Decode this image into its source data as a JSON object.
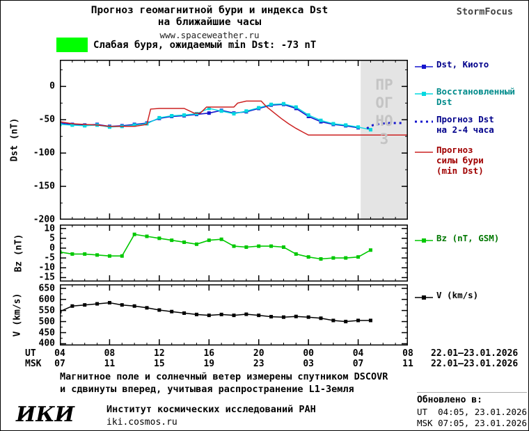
{
  "header": {
    "title_line1": "Прогноз геомагнитной бури и индекса Dst",
    "title_line2": "на ближайшие часы",
    "site": "www.spaceweather.ru",
    "brand": "StormFocus"
  },
  "alert": {
    "text": "Слабая буря, ожидаемый min Dst: -73 nT",
    "color": "#00ff00"
  },
  "legend": {
    "dst_kyoto": "Dst, Киото",
    "dst_restored": "Восстановленный\nDst",
    "dst_forecast": "Прогноз Dst\nна 2-4 часа",
    "storm_forecast": "Прогноз\nсилы бури\n(min Dst)",
    "bz": "Bz (nT, GSM)",
    "v": "V (km/s)"
  },
  "xaxis": {
    "ut_label": "UT",
    "msk_label": "MSK",
    "ut_ticks": [
      "04",
      "08",
      "12",
      "16",
      "20",
      "00",
      "04",
      "08"
    ],
    "msk_ticks": [
      "07",
      "11",
      "15",
      "19",
      "23",
      "03",
      "07",
      "11"
    ],
    "ut_dates": "22.01–23.01.2026",
    "msk_dates": "22.01–23.01.2026"
  },
  "footer": {
    "note_line1": "Магнитное поле и солнечный ветер измерены спутником DSCOVR",
    "note_line2": "и сдвинуты вперед, учитывая распространение L1-Земля",
    "logo": "ИКИ",
    "institute": "Институт космических исследований РАН",
    "site": "iki.cosmos.ru",
    "updated_label": "Обновлено в:",
    "updated_ut": "UT  04:05, 23.01.2026",
    "updated_msk": "MSK 07:05, 23.01.2026"
  },
  "chart_data": [
    {
      "type": "line",
      "ylabel": "Dst (nT)",
      "xlabel": "UT / MSK hours",
      "ylim": [
        -200,
        40
      ],
      "yticks": [
        0,
        -50,
        -100,
        -150,
        -200
      ],
      "yminor_step": 25,
      "xlim": [
        4,
        32
      ],
      "xticks": [
        4,
        8,
        12,
        16,
        20,
        24,
        28,
        32
      ],
      "xminor_step": 1,
      "forecast_region": {
        "start": 28.2,
        "end": 32,
        "color": "#e4e4e4",
        "label": "ПРОГНОЗ"
      },
      "series": [
        {
          "name": "Dst, Киото",
          "color": "#1515cd",
          "width": 1.6,
          "marker": true,
          "x": [
            4,
            5,
            6,
            7,
            8,
            9,
            10,
            11,
            12,
            13,
            14,
            15,
            16,
            17,
            18,
            19,
            20,
            21,
            22,
            23,
            24,
            25,
            26,
            27,
            28
          ],
          "y": [
            -55,
            -57,
            -58,
            -57,
            -60,
            -59,
            -57,
            -55,
            -48,
            -45,
            -44,
            -42,
            -40,
            -36,
            -40,
            -38,
            -33,
            -28,
            -27,
            -33,
            -45,
            -53,
            -57,
            -59,
            -62
          ]
        },
        {
          "name": "Восстановленный Dst",
          "color": "#00d8e0",
          "width": 1.4,
          "marker": true,
          "x": [
            4,
            5,
            6,
            7,
            8,
            9,
            10,
            11,
            12,
            13,
            14,
            15,
            16,
            17,
            18,
            19,
            20,
            21,
            22,
            23,
            24,
            25,
            26,
            27,
            28,
            29
          ],
          "y": [
            -57,
            -58,
            -59,
            -58,
            -61,
            -60,
            -58,
            -56,
            -47,
            -44,
            -43,
            -41,
            -33,
            -37,
            -41,
            -37,
            -32,
            -27,
            -26,
            -31,
            -43,
            -51,
            -56,
            -58,
            -61,
            -65
          ]
        },
        {
          "name": "Прогноз Dst на 2-4 часа",
          "color": "#1515cd",
          "width": 3,
          "dash": "3 5",
          "marker": false,
          "x": [
            28.7,
            29.2,
            29.8,
            30.4,
            31,
            31.5
          ],
          "y": [
            -63,
            -58,
            -56,
            -55,
            -55,
            -55
          ]
        },
        {
          "name": "Прогноз силы бури (min Dst)",
          "color": "#cc2020",
          "width": 1.5,
          "marker": false,
          "x": [
            4,
            5,
            6,
            7,
            8,
            10,
            11,
            11.3,
            12,
            14,
            14.8,
            15.3,
            15.8,
            18,
            18.3,
            19,
            20.2,
            20.6,
            21.2,
            21.8,
            22.4,
            23,
            23.6,
            24,
            32
          ],
          "y": [
            -53,
            -56,
            -57,
            -58,
            -60,
            -60,
            -57,
            -34,
            -33,
            -33,
            -40,
            -40,
            -31,
            -31,
            -25,
            -22,
            -22,
            -30,
            -39,
            -48,
            -56,
            -63,
            -69,
            -73,
            -73
          ]
        }
      ]
    },
    {
      "type": "line",
      "ylabel": "Bz (nT)",
      "xlabel": "UT / MSK hours",
      "ylim": [
        -17,
        12
      ],
      "yticks": [
        10,
        5,
        0,
        -5,
        -10,
        -15
      ],
      "yminor_step": 2.5,
      "xlim": [
        4,
        32
      ],
      "xticks": [
        4,
        8,
        12,
        16,
        20,
        24,
        28,
        32
      ],
      "xminor_step": 1,
      "series": [
        {
          "name": "Bz (nT, GSM)",
          "color": "#00c800",
          "width": 1.6,
          "marker": true,
          "x": [
            4,
            5,
            6,
            7,
            8,
            9,
            10,
            11,
            12,
            13,
            14,
            15,
            16,
            17,
            18,
            19,
            20,
            21,
            22,
            23,
            24,
            25,
            26,
            27,
            28,
            29
          ],
          "y": [
            -2,
            -3,
            -3,
            -3.5,
            -4,
            -4,
            7,
            6,
            5,
            4,
            3,
            2,
            4,
            4.5,
            1,
            0.5,
            1,
            1,
            0.5,
            -3,
            -4.5,
            -5.5,
            -5,
            -5,
            -4.5,
            -1
          ]
        }
      ]
    },
    {
      "type": "line",
      "ylabel": "V (km/s)",
      "xlabel": "UT / MSK hours",
      "ylim": [
        392,
        668
      ],
      "yticks": [
        650,
        600,
        550,
        500,
        450,
        400
      ],
      "yminor_step": 25,
      "xlim": [
        4,
        32
      ],
      "xticks": [
        4,
        8,
        12,
        16,
        20,
        24,
        28,
        32
      ],
      "xminor_step": 1,
      "series": [
        {
          "name": "V (km/s)",
          "color": "#000000",
          "width": 1.5,
          "marker": true,
          "x": [
            4,
            5,
            6,
            7,
            8,
            9,
            10,
            11,
            12,
            13,
            14,
            15,
            16,
            17,
            18,
            19,
            20,
            21,
            22,
            23,
            24,
            25,
            26,
            27,
            28,
            29
          ],
          "y": [
            545,
            570,
            575,
            580,
            585,
            575,
            570,
            562,
            552,
            545,
            538,
            532,
            528,
            532,
            528,
            533,
            528,
            522,
            520,
            523,
            520,
            515,
            505,
            500,
            505,
            505
          ]
        }
      ]
    }
  ]
}
